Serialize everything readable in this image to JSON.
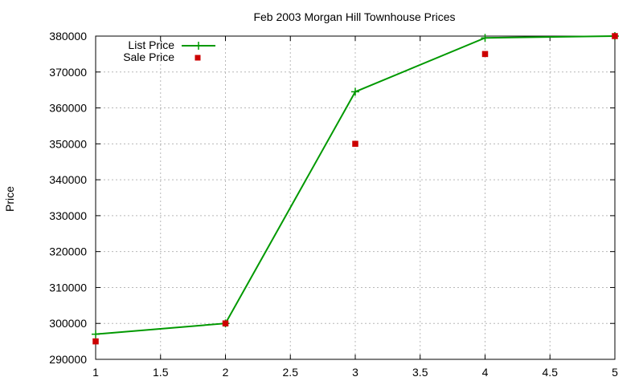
{
  "chart_data": {
    "type": "line",
    "title": "Feb 2003 Morgan Hill Townhouse Prices",
    "xlabel": "",
    "ylabel": "Price",
    "xlim": [
      1,
      5
    ],
    "ylim": [
      290000,
      380000
    ],
    "grid": true,
    "legend_position": "top-left",
    "x_ticks": [
      "1",
      "1.5",
      "2",
      "2.5",
      "3",
      "3.5",
      "4",
      "4.5",
      "5"
    ],
    "y_ticks": [
      "290000",
      "300000",
      "310000",
      "320000",
      "330000",
      "340000",
      "350000",
      "360000",
      "370000",
      "380000"
    ],
    "series": [
      {
        "name": "List Price",
        "style": "line-points",
        "marker": "plus",
        "color": "#009900",
        "x": [
          1,
          2,
          3,
          4,
          5
        ],
        "y": [
          297000,
          300000,
          364500,
          379500,
          380000
        ]
      },
      {
        "name": "Sale Price",
        "style": "points",
        "marker": "square",
        "color": "#cc0000",
        "x": [
          1,
          2,
          3,
          4,
          5
        ],
        "y": [
          295000,
          300000,
          350000,
          375000,
          380000
        ]
      }
    ]
  }
}
